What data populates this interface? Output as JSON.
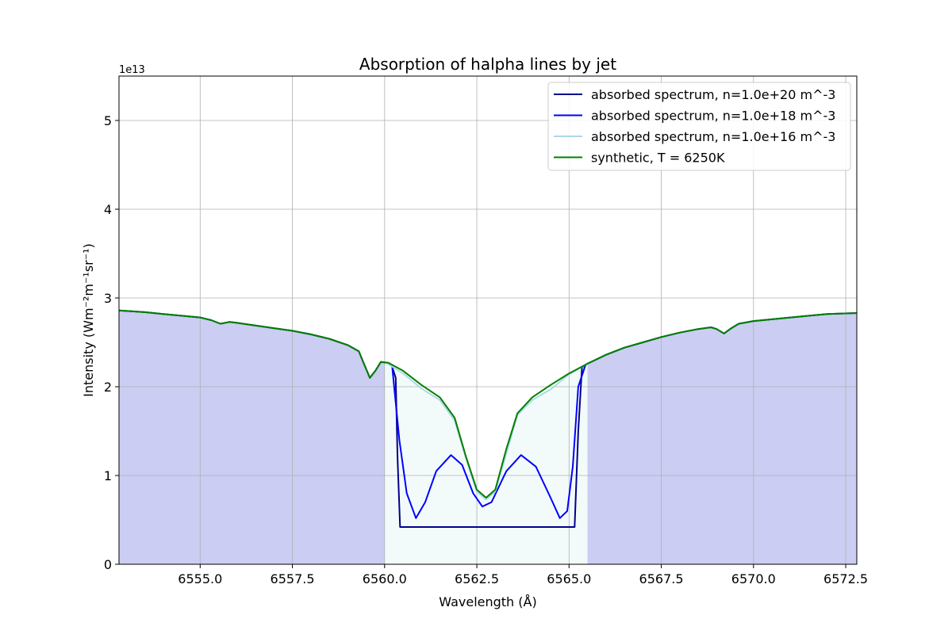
{
  "chart_data": {
    "type": "line",
    "title": "Absorption of halpha lines by jet",
    "xlabel": "Wavelength (Å)",
    "ylabel": "Intensity (Wm⁻²m⁻¹sr⁻¹)",
    "y_offset_label": "1e13",
    "xlim": [
      6552.8,
      6572.8
    ],
    "ylim": [
      0,
      5.5
    ],
    "x_ticks": [
      6555.0,
      6557.5,
      6560.0,
      6562.5,
      6565.0,
      6567.5,
      6570.0,
      6572.5
    ],
    "x_tick_labels": [
      "6555.0",
      "6557.5",
      "6560.0",
      "6562.5",
      "6565.0",
      "6567.5",
      "6570.0",
      "6572.5"
    ],
    "y_ticks": [
      0,
      1,
      2,
      3,
      4,
      5
    ],
    "y_tick_labels": [
      "0",
      "1",
      "2",
      "3",
      "4",
      "5"
    ],
    "grid": true,
    "legend_position": "top-right",
    "series": [
      {
        "name": "absorbed spectrum, n=1.0e+20 m^-3",
        "color": "#00008b",
        "fill": "#cbcdf2",
        "points": [
          [
            6552.8,
            2.86
          ],
          [
            6553.5,
            2.84
          ],
          [
            6554.0,
            2.82
          ],
          [
            6554.5,
            2.8
          ],
          [
            6555.0,
            2.78
          ],
          [
            6555.3,
            2.75
          ],
          [
            6555.55,
            2.71
          ],
          [
            6555.8,
            2.73
          ],
          [
            6556.0,
            2.72
          ],
          [
            6556.5,
            2.69
          ],
          [
            6557.0,
            2.66
          ],
          [
            6557.5,
            2.63
          ],
          [
            6558.0,
            2.59
          ],
          [
            6558.5,
            2.54
          ],
          [
            6559.0,
            2.47
          ],
          [
            6559.3,
            2.4
          ],
          [
            6559.45,
            2.25
          ],
          [
            6559.6,
            2.1
          ],
          [
            6559.75,
            2.18
          ],
          [
            6559.9,
            2.28
          ],
          [
            6560.05,
            2.27
          ],
          [
            6560.2,
            2.23
          ],
          [
            6560.3,
            2.1
          ],
          [
            6560.35,
            1.2
          ],
          [
            6560.42,
            0.42
          ],
          [
            6565.15,
            0.42
          ],
          [
            6565.25,
            1.5
          ],
          [
            6565.35,
            2.22
          ],
          [
            6565.5,
            2.26
          ],
          [
            6566.0,
            2.36
          ],
          [
            6566.5,
            2.44
          ],
          [
            6567.0,
            2.5
          ],
          [
            6567.5,
            2.56
          ],
          [
            6568.0,
            2.61
          ],
          [
            6568.5,
            2.65
          ],
          [
            6568.85,
            2.67
          ],
          [
            6569.0,
            2.65
          ],
          [
            6569.2,
            2.6
          ],
          [
            6569.4,
            2.66
          ],
          [
            6569.6,
            2.71
          ],
          [
            6570.0,
            2.74
          ],
          [
            6570.5,
            2.76
          ],
          [
            6571.0,
            2.78
          ],
          [
            6571.5,
            2.8
          ],
          [
            6572.0,
            2.82
          ],
          [
            6572.8,
            2.83
          ]
        ]
      },
      {
        "name": "absorbed spectrum, n=1.0e+18 m^-3",
        "color": "#0000ff",
        "fill": "#dfe2fd",
        "points": [
          [
            6560.2,
            2.25
          ],
          [
            6560.4,
            1.4
          ],
          [
            6560.6,
            0.8
          ],
          [
            6560.85,
            0.52
          ],
          [
            6561.1,
            0.7
          ],
          [
            6561.4,
            1.05
          ],
          [
            6561.8,
            1.23
          ],
          [
            6562.1,
            1.12
          ],
          [
            6562.4,
            0.8
          ],
          [
            6562.65,
            0.65
          ],
          [
            6562.9,
            0.7
          ],
          [
            6563.3,
            1.05
          ],
          [
            6563.7,
            1.23
          ],
          [
            6564.1,
            1.1
          ],
          [
            6564.5,
            0.75
          ],
          [
            6564.75,
            0.52
          ],
          [
            6564.95,
            0.6
          ],
          [
            6565.1,
            1.1
          ],
          [
            6565.25,
            2.0
          ],
          [
            6565.45,
            2.25
          ]
        ]
      },
      {
        "name": "absorbed spectrum, n=1.0e+16 m^-3",
        "color": "#add8e6",
        "fill": "#f3fbfa",
        "points": [
          [
            6560.0,
            2.28
          ],
          [
            6560.5,
            2.15
          ],
          [
            6561.0,
            1.98
          ],
          [
            6561.5,
            1.85
          ],
          [
            6561.9,
            1.62
          ],
          [
            6562.2,
            1.2
          ],
          [
            6562.5,
            0.82
          ],
          [
            6562.75,
            0.73
          ],
          [
            6563.0,
            0.82
          ],
          [
            6563.3,
            1.25
          ],
          [
            6563.6,
            1.68
          ],
          [
            6564.0,
            1.85
          ],
          [
            6564.5,
            1.97
          ],
          [
            6565.0,
            2.14
          ],
          [
            6565.5,
            2.26
          ]
        ]
      },
      {
        "name": "synthetic, T = 6250K",
        "color": "#008000",
        "fill": "none",
        "points": [
          [
            6552.8,
            2.86
          ],
          [
            6553.5,
            2.84
          ],
          [
            6554.0,
            2.82
          ],
          [
            6554.5,
            2.8
          ],
          [
            6555.0,
            2.78
          ],
          [
            6555.3,
            2.75
          ],
          [
            6555.55,
            2.71
          ],
          [
            6555.8,
            2.73
          ],
          [
            6556.0,
            2.72
          ],
          [
            6556.5,
            2.69
          ],
          [
            6557.0,
            2.66
          ],
          [
            6557.5,
            2.63
          ],
          [
            6558.0,
            2.59
          ],
          [
            6558.5,
            2.54
          ],
          [
            6559.0,
            2.47
          ],
          [
            6559.3,
            2.4
          ],
          [
            6559.45,
            2.25
          ],
          [
            6559.6,
            2.1
          ],
          [
            6559.75,
            2.18
          ],
          [
            6559.9,
            2.28
          ],
          [
            6560.1,
            2.27
          ],
          [
            6560.5,
            2.18
          ],
          [
            6561.0,
            2.02
          ],
          [
            6561.5,
            1.88
          ],
          [
            6561.9,
            1.65
          ],
          [
            6562.2,
            1.22
          ],
          [
            6562.5,
            0.84
          ],
          [
            6562.75,
            0.75
          ],
          [
            6563.0,
            0.84
          ],
          [
            6563.3,
            1.3
          ],
          [
            6563.6,
            1.7
          ],
          [
            6564.0,
            1.88
          ],
          [
            6564.5,
            2.02
          ],
          [
            6565.0,
            2.15
          ],
          [
            6565.5,
            2.26
          ],
          [
            6566.0,
            2.36
          ],
          [
            6566.5,
            2.44
          ],
          [
            6567.0,
            2.5
          ],
          [
            6567.5,
            2.56
          ],
          [
            6568.0,
            2.61
          ],
          [
            6568.5,
            2.65
          ],
          [
            6568.85,
            2.67
          ],
          [
            6569.0,
            2.65
          ],
          [
            6569.2,
            2.6
          ],
          [
            6569.4,
            2.66
          ],
          [
            6569.6,
            2.71
          ],
          [
            6570.0,
            2.74
          ],
          [
            6570.5,
            2.76
          ],
          [
            6571.0,
            2.78
          ],
          [
            6571.5,
            2.8
          ],
          [
            6572.0,
            2.82
          ],
          [
            6572.8,
            2.83
          ]
        ]
      }
    ]
  }
}
